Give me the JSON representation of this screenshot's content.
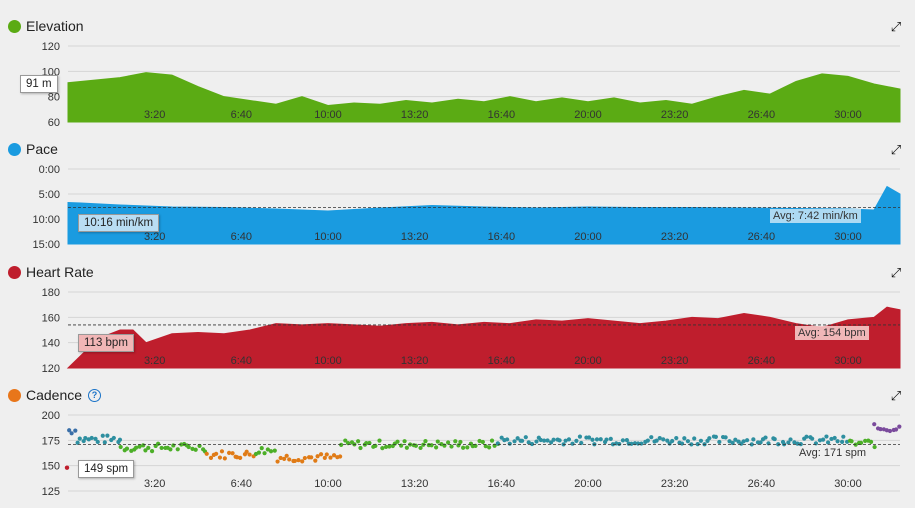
{
  "chart_data": [
    {
      "type": "area",
      "title": "Elevation",
      "color": "#5bab14",
      "unit": "m",
      "yticks": [
        "120",
        "100",
        "80",
        "60"
      ],
      "ylim": [
        60,
        120
      ],
      "x": [
        0,
        2,
        3,
        4,
        5,
        6,
        7,
        8,
        9,
        10,
        11,
        12,
        13,
        14,
        15,
        16,
        17,
        18,
        19,
        20,
        21,
        22,
        23,
        24,
        25,
        26,
        27,
        28,
        29,
        30,
        31,
        32
      ],
      "values": [
        91,
        95,
        99,
        97,
        88,
        80,
        77,
        74,
        80,
        73,
        75,
        74,
        77,
        75,
        78,
        76,
        80,
        76,
        79,
        76,
        79,
        75,
        77,
        74,
        80,
        85,
        82,
        92,
        98,
        96,
        90,
        86
      ],
      "hover_label": "91 m"
    },
    {
      "type": "area",
      "title": "Pace",
      "color": "#1a9be0",
      "yticks": [
        "0:00",
        "5:00",
        "10:00",
        "15:00"
      ],
      "ylim": [
        0,
        15
      ],
      "inverted": true,
      "x": [
        0,
        0.5,
        2,
        4,
        6,
        8,
        10,
        12,
        14,
        16,
        18,
        20,
        22,
        24,
        26,
        28,
        30,
        31,
        31.5,
        32
      ],
      "values": [
        6.7,
        6.8,
        7.2,
        7.6,
        7.7,
        8.0,
        8.4,
        7.8,
        7.3,
        7.6,
        7.8,
        7.6,
        7.7,
        7.7,
        7.8,
        7.9,
        8.0,
        8.2,
        3.5,
        5.0
      ],
      "average": 7.7,
      "average_label": "Avg: 7:42 min/km",
      "hover_label": "10:16 min/km"
    },
    {
      "type": "area",
      "title": "Heart Rate",
      "color": "#bf1e2d",
      "yticks": [
        "180",
        "160",
        "140",
        "120"
      ],
      "ylim": [
        120,
        180
      ],
      "x": [
        0,
        0.5,
        1,
        1.5,
        2,
        2.5,
        3,
        4,
        5,
        6,
        7,
        8,
        9,
        10,
        11,
        12,
        13,
        14,
        15,
        16,
        17,
        18,
        19,
        20,
        21,
        22,
        23,
        24,
        25,
        26,
        27,
        28,
        29,
        30,
        31,
        31.5,
        32
      ],
      "values": [
        120,
        130,
        140,
        146,
        150,
        150,
        140,
        147,
        148,
        147,
        150,
        155,
        154,
        155,
        154,
        153,
        155,
        156,
        154,
        156,
        155,
        158,
        157,
        159,
        157,
        155,
        157,
        160,
        159,
        163,
        160,
        155,
        152,
        158,
        160,
        168,
        166
      ],
      "average": 154,
      "average_label": "Avg: 154 bpm",
      "hover_label": "113 bpm"
    },
    {
      "type": "scatter",
      "title": "Cadence",
      "yticks": [
        "200",
        "175",
        "150",
        "125"
      ],
      "ylim": [
        125,
        200
      ],
      "x_range": [
        0,
        32
      ],
      "average": 171,
      "average_label": "Avg: 171 spm",
      "hover_label": "149 spm",
      "segments": [
        {
          "from": 0.0,
          "to": 0.3,
          "base": 185,
          "color": "#3a6fa8"
        },
        {
          "from": 0.3,
          "to": 2.0,
          "base": 176,
          "color": "#2e8fa0"
        },
        {
          "from": 2.0,
          "to": 5.3,
          "base": 168,
          "color": "#4caf28"
        },
        {
          "from": 5.3,
          "to": 7.2,
          "base": 161,
          "color": "#e07b16"
        },
        {
          "from": 7.2,
          "to": 8.0,
          "base": 165,
          "color": "#4caf28"
        },
        {
          "from": 8.0,
          "to": 10.5,
          "base": 158,
          "color": "#e07b16"
        },
        {
          "from": 10.5,
          "to": 16.5,
          "base": 171,
          "color": "#4caf28"
        },
        {
          "from": 16.5,
          "to": 30.0,
          "base": 175,
          "color": "#2e8fa0"
        },
        {
          "from": 30.0,
          "to": 31.0,
          "base": 172,
          "color": "#4caf28"
        },
        {
          "from": 31.0,
          "to": 32.0,
          "base": 187,
          "color": "#7a4a9c"
        }
      ]
    }
  ],
  "xticks": [
    "3:20",
    "6:40",
    "10:00",
    "13:20",
    "16:40",
    "20:00",
    "23:20",
    "26:40",
    "30:00"
  ],
  "x_tick_positions": [
    3.333,
    6.667,
    10,
    13.333,
    16.667,
    20,
    23.333,
    26.667,
    30
  ],
  "icons": {
    "expand": "expand-icon",
    "help": "help-icon"
  },
  "help_glyph": "?"
}
